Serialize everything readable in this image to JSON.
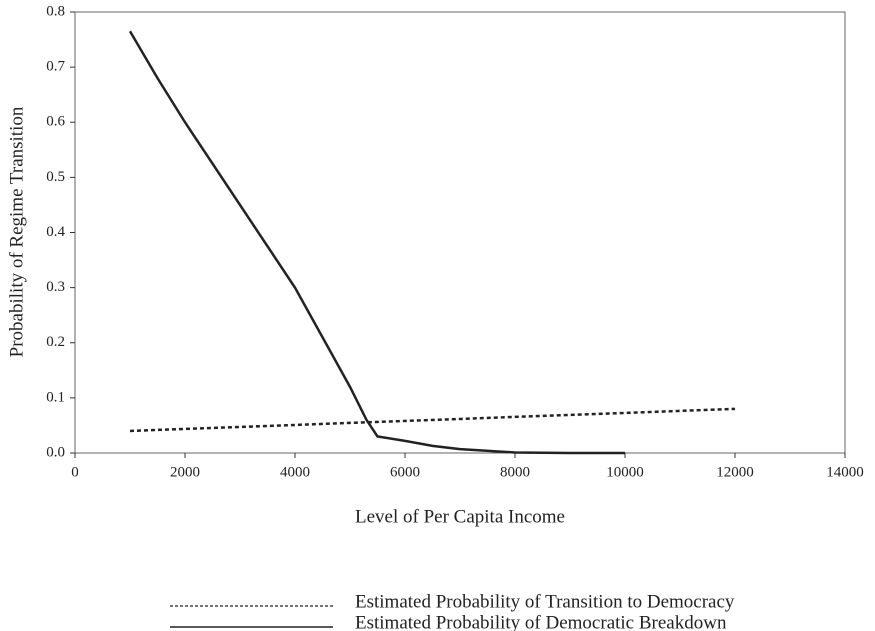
{
  "chart_data": {
    "type": "line",
    "xlabel": "Level of Per Capita Income",
    "ylabel": "Probability of Regime Transition",
    "xlim": [
      0,
      14000
    ],
    "xticks": [
      0,
      2000,
      4000,
      6000,
      8000,
      10000,
      12000,
      14000
    ],
    "ylim": [
      0,
      0.8
    ],
    "yticks": [
      {
        "value": 0,
        "label": "0.0"
      },
      0.1,
      0.2,
      0.3,
      0.4,
      0.5,
      0.6,
      0.7,
      0.8
    ],
    "grid": false,
    "series": [
      {
        "name": "Estimated Probability of Transition to Democracy",
        "color": "#222222",
        "style": "dotted",
        "x": [
          1000,
          12000
        ],
        "values": [
          0.04,
          0.08
        ]
      },
      {
        "name": "Estimated Probability of Democratic Breakdown",
        "color": "#222222",
        "style": "solid",
        "x": [
          1000,
          1500,
          2000,
          3000,
          4000,
          5000,
          5300,
          5500,
          6000,
          6500,
          7000,
          8000,
          9000,
          10000
        ],
        "values": [
          0.765,
          0.68,
          0.6,
          0.45,
          0.3,
          0.12,
          0.06,
          0.03,
          0.022,
          0.013,
          0.007,
          0.001,
          0,
          0
        ]
      }
    ]
  }
}
